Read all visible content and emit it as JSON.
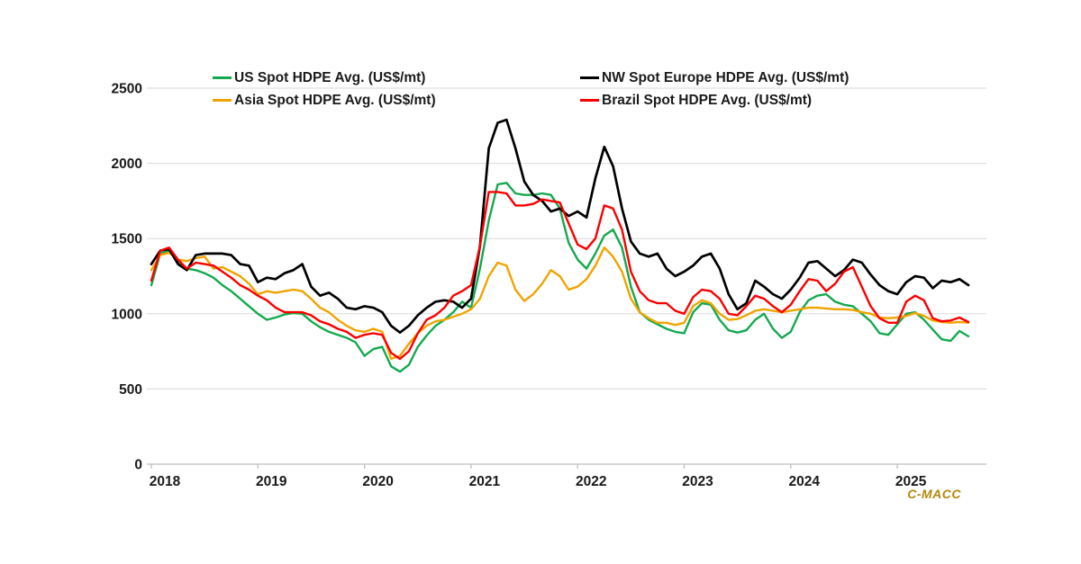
{
  "watermark": {
    "text": "C-MACC"
  },
  "chart_data": {
    "type": "line",
    "title": "",
    "xlabel": "",
    "ylabel": "",
    "ylim": [
      0,
      2500
    ],
    "y_ticks": [
      0,
      500,
      1000,
      1500,
      2000,
      2500
    ],
    "x_ticks": [
      "2018",
      "2019",
      "2020",
      "2021",
      "2022",
      "2023",
      "2024",
      "2025"
    ],
    "grid": "horizontal",
    "legend_position": "top",
    "x_unit": "month",
    "months": [
      "2018-01",
      "2018-02",
      "2018-03",
      "2018-04",
      "2018-05",
      "2018-06",
      "2018-07",
      "2018-08",
      "2018-09",
      "2018-10",
      "2018-11",
      "2018-12",
      "2019-01",
      "2019-02",
      "2019-03",
      "2019-04",
      "2019-05",
      "2019-06",
      "2019-07",
      "2019-08",
      "2019-09",
      "2019-10",
      "2019-11",
      "2019-12",
      "2020-01",
      "2020-02",
      "2020-03",
      "2020-04",
      "2020-05",
      "2020-06",
      "2020-07",
      "2020-08",
      "2020-09",
      "2020-10",
      "2020-11",
      "2020-12",
      "2021-01",
      "2021-02",
      "2021-03",
      "2021-04",
      "2021-05",
      "2021-06",
      "2021-07",
      "2021-08",
      "2021-09",
      "2021-10",
      "2021-11",
      "2021-12",
      "2022-01",
      "2022-02",
      "2022-03",
      "2022-04",
      "2022-05",
      "2022-06",
      "2022-07",
      "2022-08",
      "2022-09",
      "2022-10",
      "2022-11",
      "2022-12",
      "2023-01",
      "2023-02",
      "2023-03",
      "2023-04",
      "2023-05",
      "2023-06",
      "2023-07",
      "2023-08",
      "2023-09",
      "2023-10",
      "2023-11",
      "2023-12",
      "2024-01",
      "2024-02",
      "2024-03",
      "2024-04",
      "2024-05",
      "2024-06",
      "2024-07",
      "2024-08",
      "2024-09",
      "2024-10",
      "2024-11",
      "2024-12",
      "2025-01",
      "2025-02",
      "2025-03",
      "2025-04",
      "2025-05",
      "2025-06",
      "2025-07",
      "2025-08",
      "2025-09"
    ],
    "series": [
      {
        "name": "US Spot HDPE Avg. (US$/mt)",
        "color": "#15A94F",
        "values": [
          1190,
          1400,
          1420,
          1350,
          1300,
          1290,
          1270,
          1240,
          1190,
          1150,
          1100,
          1050,
          1000,
          960,
          975,
          995,
          1005,
          1000,
          950,
          910,
          880,
          860,
          840,
          810,
          720,
          765,
          780,
          650,
          615,
          660,
          780,
          855,
          920,
          960,
          1010,
          1080,
          1040,
          1300,
          1620,
          1860,
          1870,
          1800,
          1790,
          1790,
          1800,
          1790,
          1700,
          1470,
          1360,
          1300,
          1400,
          1520,
          1560,
          1440,
          1180,
          1010,
          960,
          930,
          900,
          880,
          870,
          1010,
          1070,
          1060,
          960,
          890,
          875,
          890,
          960,
          1000,
          900,
          840,
          880,
          1010,
          1090,
          1120,
          1130,
          1080,
          1060,
          1050,
          1000,
          950,
          870,
          860,
          930,
          1000,
          1010,
          960,
          895,
          830,
          820,
          885,
          850
        ]
      },
      {
        "name": "Asia Spot HDPE Avg. (US$/mt)",
        "color": "#EFA400",
        "values": [
          1290,
          1390,
          1405,
          1360,
          1350,
          1370,
          1380,
          1300,
          1310,
          1280,
          1250,
          1200,
          1130,
          1150,
          1140,
          1150,
          1160,
          1150,
          1100,
          1040,
          1010,
          960,
          920,
          890,
          880,
          900,
          880,
          700,
          720,
          800,
          870,
          920,
          950,
          960,
          980,
          1000,
          1030,
          1100,
          1250,
          1340,
          1320,
          1160,
          1085,
          1130,
          1200,
          1290,
          1250,
          1160,
          1180,
          1230,
          1320,
          1440,
          1380,
          1280,
          1100,
          1010,
          970,
          940,
          940,
          925,
          940,
          1050,
          1090,
          1070,
          1000,
          960,
          965,
          990,
          1020,
          1030,
          1020,
          1010,
          1020,
          1030,
          1040,
          1040,
          1035,
          1030,
          1030,
          1025,
          1010,
          1000,
          975,
          970,
          975,
          985,
          1005,
          985,
          955,
          945,
          940,
          945,
          940
        ]
      },
      {
        "name": "NW Spot Europe HDPE Avg. (US$/mt)",
        "color": "#000000",
        "values": [
          1330,
          1420,
          1430,
          1330,
          1290,
          1390,
          1400,
          1400,
          1400,
          1390,
          1330,
          1320,
          1210,
          1240,
          1230,
          1270,
          1290,
          1330,
          1180,
          1120,
          1140,
          1100,
          1040,
          1030,
          1050,
          1040,
          1010,
          920,
          875,
          920,
          990,
          1040,
          1080,
          1090,
          1080,
          1040,
          1100,
          1450,
          2100,
          2270,
          2290,
          2100,
          1880,
          1790,
          1750,
          1680,
          1700,
          1650,
          1680,
          1640,
          1900,
          2110,
          1980,
          1700,
          1480,
          1400,
          1380,
          1400,
          1300,
          1250,
          1280,
          1320,
          1380,
          1400,
          1300,
          1130,
          1030,
          1070,
          1220,
          1180,
          1130,
          1100,
          1160,
          1240,
          1340,
          1350,
          1300,
          1250,
          1290,
          1360,
          1340,
          1260,
          1190,
          1150,
          1130,
          1210,
          1250,
          1240,
          1170,
          1220,
          1210,
          1230,
          1190
        ]
      },
      {
        "name": "Brazil Spot HDPE Avg. (US$/mt)",
        "color": "#FA0000",
        "values": [
          1220,
          1420,
          1440,
          1360,
          1300,
          1340,
          1330,
          1320,
          1280,
          1240,
          1190,
          1160,
          1120,
          1090,
          1040,
          1010,
          1010,
          1010,
          990,
          950,
          930,
          900,
          880,
          840,
          860,
          870,
          860,
          740,
          700,
          750,
          870,
          960,
          990,
          1040,
          1120,
          1150,
          1190,
          1450,
          1810,
          1810,
          1800,
          1720,
          1720,
          1730,
          1760,
          1750,
          1740,
          1600,
          1460,
          1430,
          1500,
          1720,
          1700,
          1560,
          1280,
          1150,
          1090,
          1070,
          1070,
          1020,
          1000,
          1110,
          1160,
          1150,
          1100,
          1000,
          990,
          1050,
          1120,
          1100,
          1050,
          1010,
          1060,
          1150,
          1230,
          1220,
          1150,
          1200,
          1280,
          1310,
          1180,
          1050,
          970,
          940,
          940,
          1080,
          1120,
          1090,
          970,
          950,
          955,
          975,
          945
        ]
      }
    ],
    "legend_order": [
      0,
      2,
      1,
      3
    ]
  }
}
